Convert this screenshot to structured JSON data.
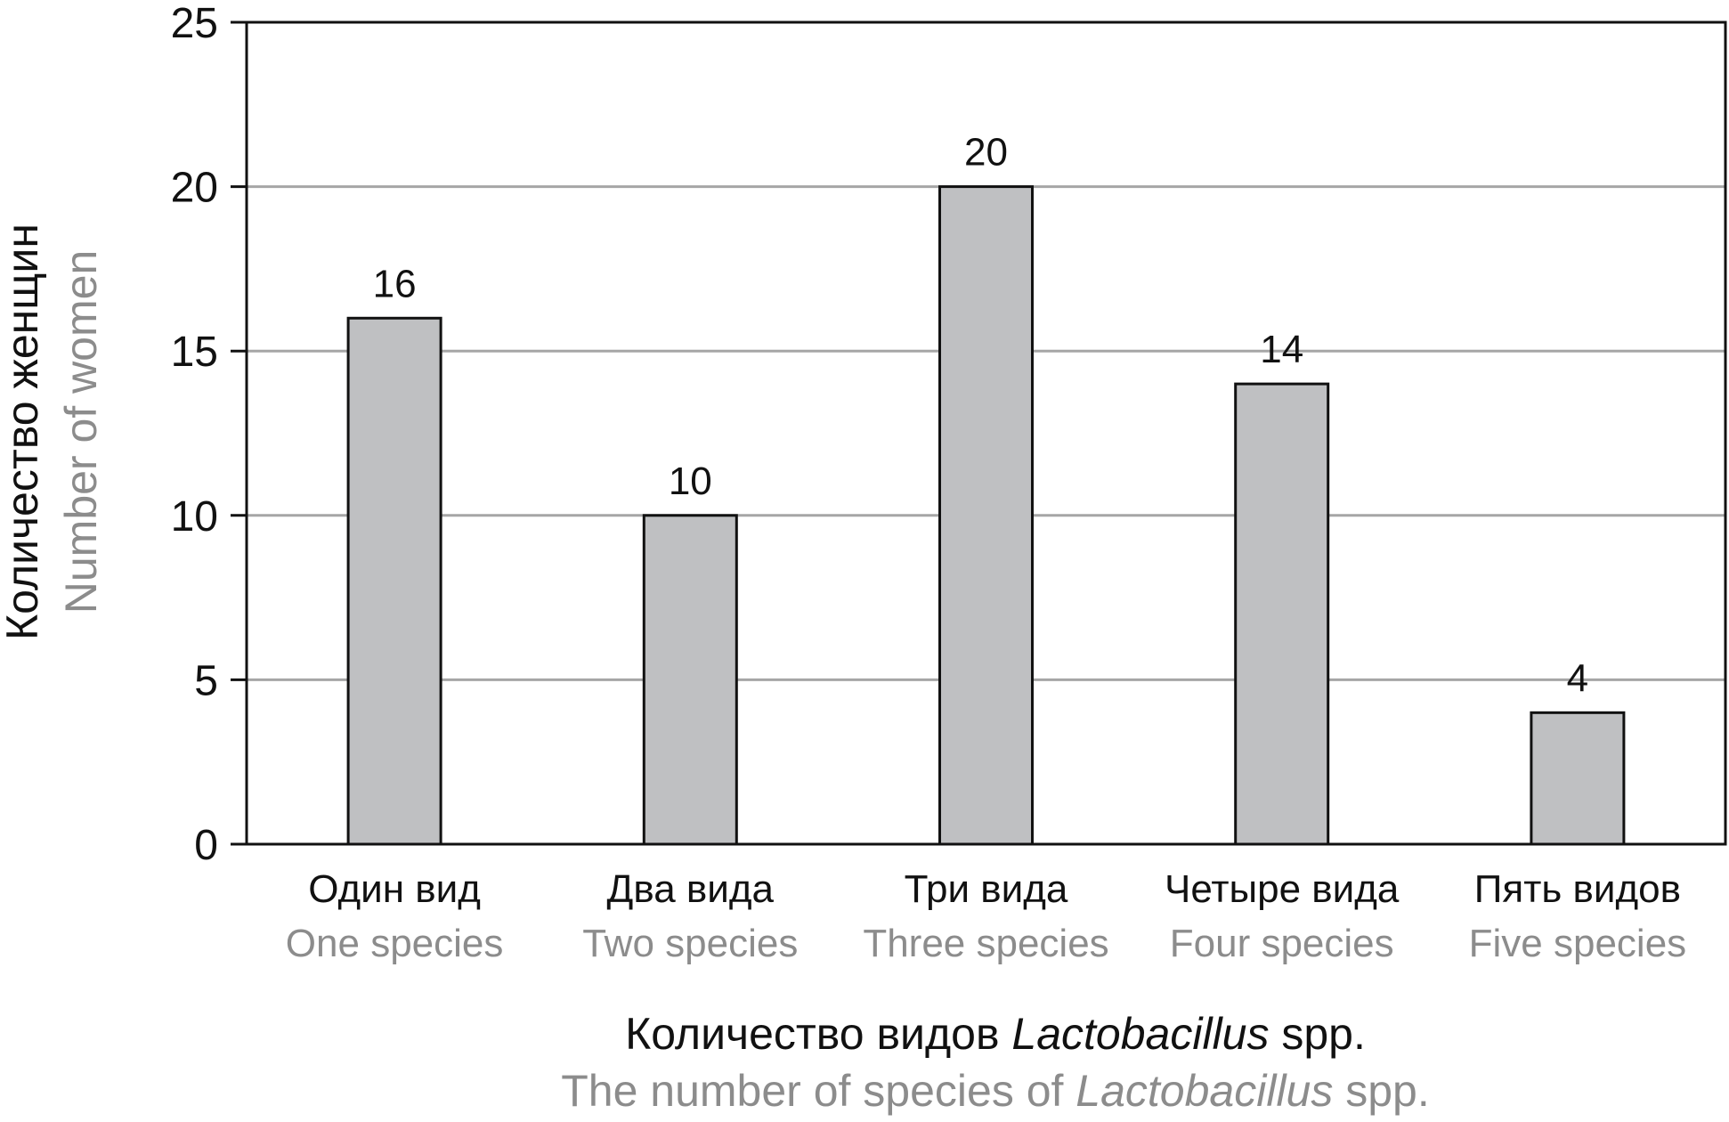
{
  "chart_data": {
    "type": "bar",
    "categories": [
      {
        "ru": "Один вид",
        "en": "One species"
      },
      {
        "ru": "Два вида",
        "en": "Two species"
      },
      {
        "ru": "Три вида",
        "en": "Three species"
      },
      {
        "ru": "Четыре вида",
        "en": "Four species"
      },
      {
        "ru": "Пять видов",
        "en": "Five species"
      }
    ],
    "values": [
      16,
      10,
      20,
      14,
      4
    ],
    "data_labels": [
      "16",
      "10",
      "20",
      "14",
      "4"
    ],
    "ylim": [
      0,
      25
    ],
    "yticks": [
      "0",
      "5",
      "10",
      "15",
      "20",
      "25"
    ],
    "ylabel": {
      "ru": "Количество женщин",
      "en": "Number of women"
    },
    "xlabel": {
      "ru_before": "Количество видов ",
      "ru_italic": "Lactobacillus",
      "ru_after": " spp.",
      "en_before": "The number of species of ",
      "en_italic": "Lactobacillus",
      "en_after": " spp."
    },
    "grid": "horizontal",
    "colors": {
      "bar": "#bfc0c2",
      "bar_stroke": "#111111",
      "grid": "#a6a6a6",
      "secondary_text": "#8c8c8c"
    }
  }
}
